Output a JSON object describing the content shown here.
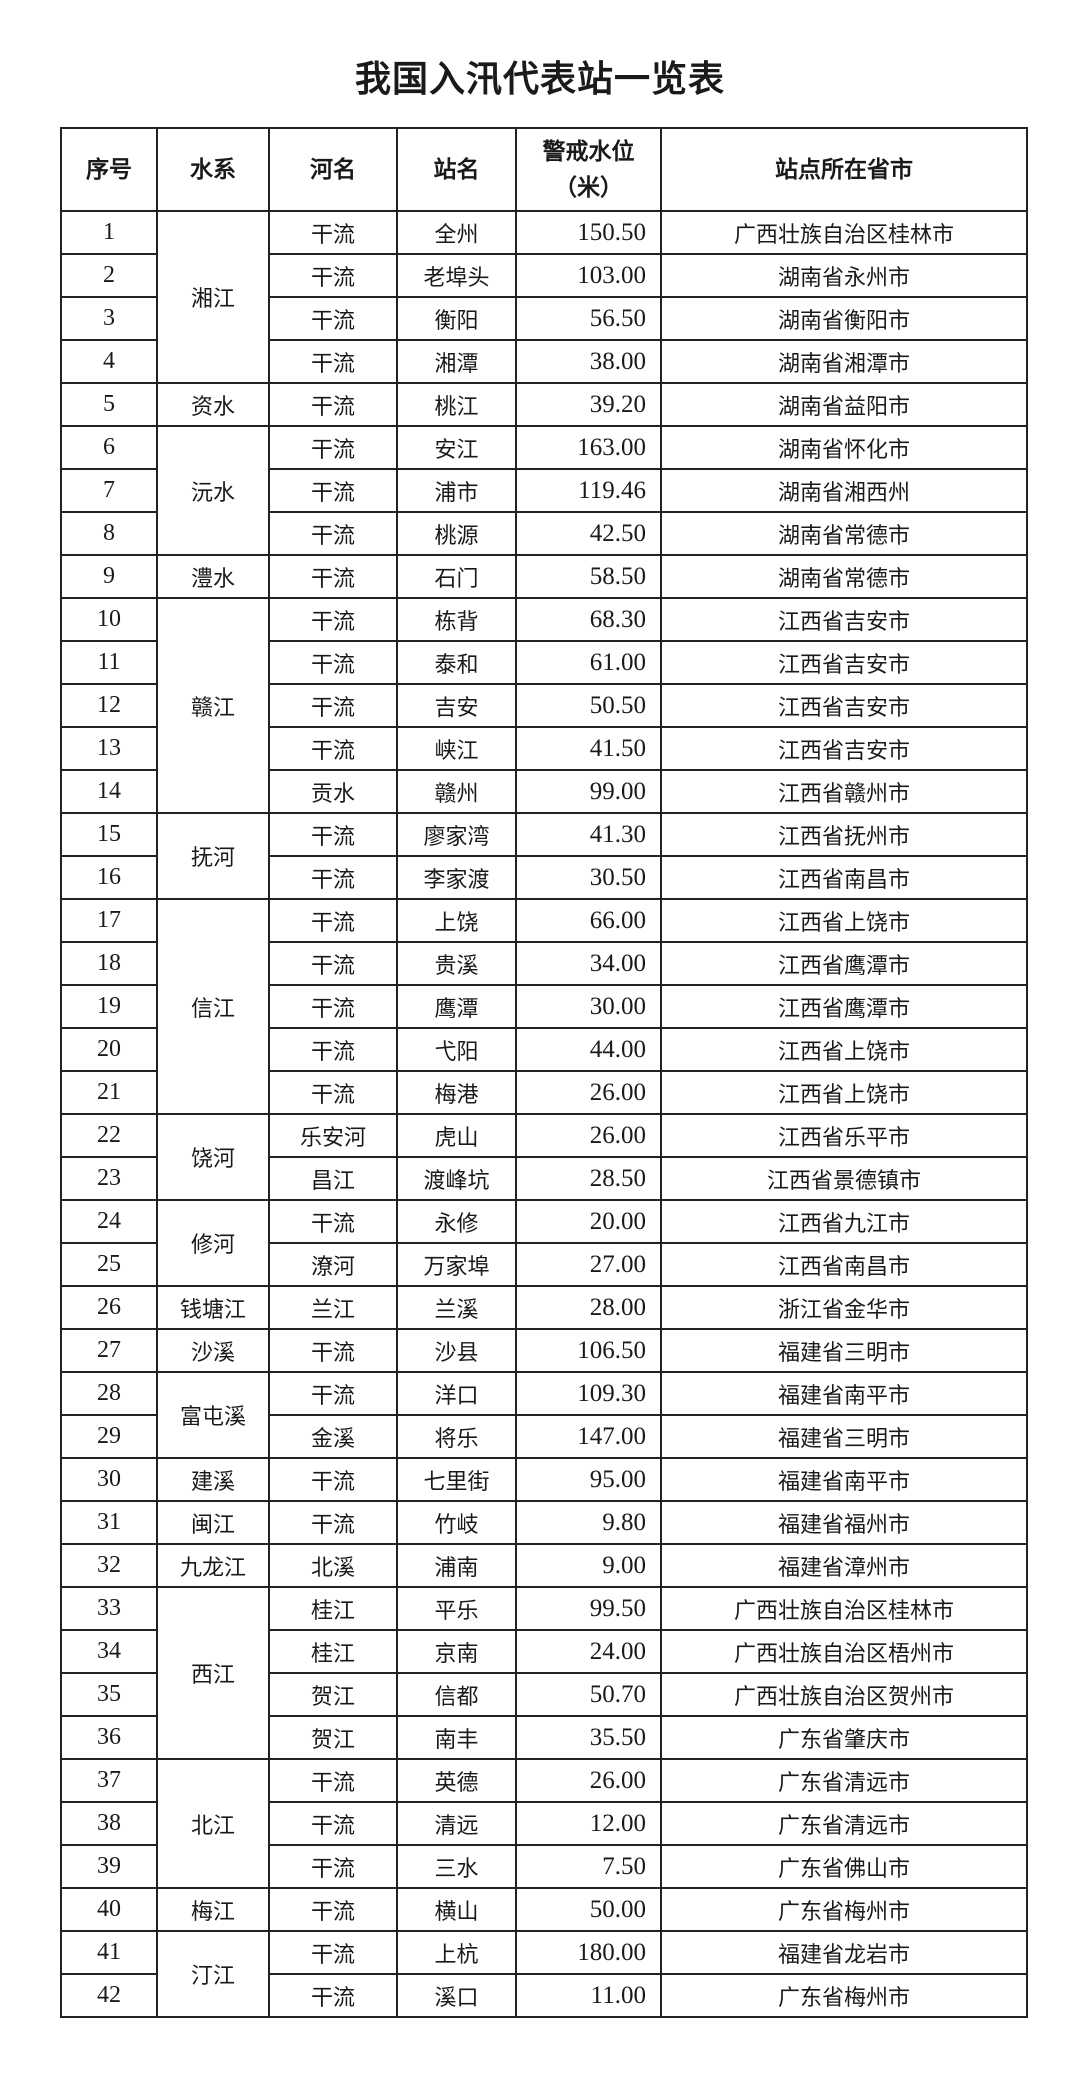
{
  "title": "我国入汛代表站一览表",
  "headers": [
    "序号",
    "水系",
    "河名",
    "站名",
    "警戒水位\n（米）",
    "站点所在省市"
  ],
  "groups": [
    {
      "basin": "湘江",
      "rows": [
        [
          "1",
          "干流",
          "全州",
          "150.50",
          "广西壮族自治区桂林市"
        ],
        [
          "2",
          "干流",
          "老埠头",
          "103.00",
          "湖南省永州市"
        ],
        [
          "3",
          "干流",
          "衡阳",
          "56.50",
          "湖南省衡阳市"
        ],
        [
          "4",
          "干流",
          "湘潭",
          "38.00",
          "湖南省湘潭市"
        ]
      ]
    },
    {
      "basin": "资水",
      "rows": [
        [
          "5",
          "干流",
          "桃江",
          "39.20",
          "湖南省益阳市"
        ]
      ]
    },
    {
      "basin": "沅水",
      "rows": [
        [
          "6",
          "干流",
          "安江",
          "163.00",
          "湖南省怀化市"
        ],
        [
          "7",
          "干流",
          "浦市",
          "119.46",
          "湖南省湘西州"
        ],
        [
          "8",
          "干流",
          "桃源",
          "42.50",
          "湖南省常德市"
        ]
      ]
    },
    {
      "basin": "澧水",
      "rows": [
        [
          "9",
          "干流",
          "石门",
          "58.50",
          "湖南省常德市"
        ]
      ]
    },
    {
      "basin": "赣江",
      "rows": [
        [
          "10",
          "干流",
          "栋背",
          "68.30",
          "江西省吉安市"
        ],
        [
          "11",
          "干流",
          "泰和",
          "61.00",
          "江西省吉安市"
        ],
        [
          "12",
          "干流",
          "吉安",
          "50.50",
          "江西省吉安市"
        ],
        [
          "13",
          "干流",
          "峡江",
          "41.50",
          "江西省吉安市"
        ],
        [
          "14",
          "贡水",
          "赣州",
          "99.00",
          "江西省赣州市"
        ]
      ]
    },
    {
      "basin": "抚河",
      "rows": [
        [
          "15",
          "干流",
          "廖家湾",
          "41.30",
          "江西省抚州市"
        ],
        [
          "16",
          "干流",
          "李家渡",
          "30.50",
          "江西省南昌市"
        ]
      ]
    },
    {
      "basin": "信江",
      "rows": [
        [
          "17",
          "干流",
          "上饶",
          "66.00",
          "江西省上饶市"
        ],
        [
          "18",
          "干流",
          "贵溪",
          "34.00",
          "江西省鹰潭市"
        ],
        [
          "19",
          "干流",
          "鹰潭",
          "30.00",
          "江西省鹰潭市"
        ],
        [
          "20",
          "干流",
          "弋阳",
          "44.00",
          "江西省上饶市"
        ],
        [
          "21",
          "干流",
          "梅港",
          "26.00",
          "江西省上饶市"
        ]
      ]
    },
    {
      "basin": "饶河",
      "rows": [
        [
          "22",
          "乐安河",
          "虎山",
          "26.00",
          "江西省乐平市"
        ],
        [
          "23",
          "昌江",
          "渡峰坑",
          "28.50",
          "江西省景德镇市"
        ]
      ]
    },
    {
      "basin": "修河",
      "rows": [
        [
          "24",
          "干流",
          "永修",
          "20.00",
          "江西省九江市"
        ],
        [
          "25",
          "潦河",
          "万家埠",
          "27.00",
          "江西省南昌市"
        ]
      ]
    },
    {
      "basin": "钱塘江",
      "rows": [
        [
          "26",
          "兰江",
          "兰溪",
          "28.00",
          "浙江省金华市"
        ]
      ]
    },
    {
      "basin": "沙溪",
      "rows": [
        [
          "27",
          "干流",
          "沙县",
          "106.50",
          "福建省三明市"
        ]
      ]
    },
    {
      "basin": "富屯溪",
      "rows": [
        [
          "28",
          "干流",
          "洋口",
          "109.30",
          "福建省南平市"
        ],
        [
          "29",
          "金溪",
          "将乐",
          "147.00",
          "福建省三明市"
        ]
      ]
    },
    {
      "basin": "建溪",
      "rows": [
        [
          "30",
          "干流",
          "七里街",
          "95.00",
          "福建省南平市"
        ]
      ]
    },
    {
      "basin": "闽江",
      "rows": [
        [
          "31",
          "干流",
          "竹岐",
          "9.80",
          "福建省福州市"
        ]
      ]
    },
    {
      "basin": "九龙江",
      "rows": [
        [
          "32",
          "北溪",
          "浦南",
          "9.00",
          "福建省漳州市"
        ]
      ]
    },
    {
      "basin": "西江",
      "rows": [
        [
          "33",
          "桂江",
          "平乐",
          "99.50",
          "广西壮族自治区桂林市"
        ],
        [
          "34",
          "桂江",
          "京南",
          "24.00",
          "广西壮族自治区梧州市"
        ],
        [
          "35",
          "贺江",
          "信都",
          "50.70",
          "广西壮族自治区贺州市"
        ],
        [
          "36",
          "贺江",
          "南丰",
          "35.50",
          "广东省肇庆市"
        ]
      ]
    },
    {
      "basin": "北江",
      "rows": [
        [
          "37",
          "干流",
          "英德",
          "26.00",
          "广东省清远市"
        ],
        [
          "38",
          "干流",
          "清远",
          "12.00",
          "广东省清远市"
        ],
        [
          "39",
          "干流",
          "三水",
          "7.50",
          "广东省佛山市"
        ]
      ]
    },
    {
      "basin": "梅江",
      "rows": [
        [
          "40",
          "干流",
          "横山",
          "50.00",
          "广东省梅州市"
        ]
      ]
    },
    {
      "basin": "汀江",
      "rows": [
        [
          "41",
          "干流",
          "上杭",
          "180.00",
          "福建省龙岩市"
        ],
        [
          "42",
          "干流",
          "溪口",
          "11.00",
          "广东省梅州市"
        ]
      ]
    }
  ]
}
